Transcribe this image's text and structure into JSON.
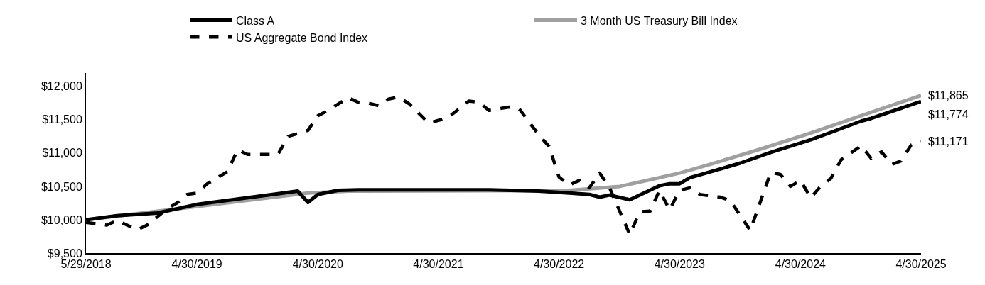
{
  "chart_data": {
    "type": "line",
    "xlim": [
      "2018-05-29",
      "2025-04-30"
    ],
    "xticks": [
      {
        "value": "2018-05-29",
        "label": "5/29/2018"
      },
      {
        "value": "2019-04-30",
        "label": "4/30/2019"
      },
      {
        "value": "2020-04-30",
        "label": "4/30/2020"
      },
      {
        "value": "2021-04-30",
        "label": "4/30/2021"
      },
      {
        "value": "2022-04-30",
        "label": "4/30/2022"
      },
      {
        "value": "2023-04-30",
        "label": "4/30/2023"
      },
      {
        "value": "2024-04-30",
        "label": "4/30/2024"
      },
      {
        "value": "2025-04-30",
        "label": "4/30/2025"
      }
    ],
    "ylim": [
      9500,
      12200
    ],
    "yticks": [
      {
        "value": 9500,
        "label": "$9,500"
      },
      {
        "value": 10000,
        "label": "$10,000"
      },
      {
        "value": 10500,
        "label": "$10,500"
      },
      {
        "value": 11000,
        "label": "$11,000"
      },
      {
        "value": 11500,
        "label": "$11,500"
      },
      {
        "value": 12000,
        "label": "$12,000"
      }
    ],
    "legend": "top",
    "marker": "none",
    "series": [
      {
        "name": "Class A",
        "color": "#000000",
        "line_style": "solid",
        "x": [
          "2018-05-29",
          "2018-08-31",
          "2018-12-31",
          "2019-04-30",
          "2019-12-31",
          "2020-02-29",
          "2020-03-31",
          "2020-04-30",
          "2020-06-30",
          "2020-08-31",
          "2021-09-30",
          "2022-02-28",
          "2022-05-31",
          "2022-07-31",
          "2022-08-31",
          "2022-09-30",
          "2022-11-30",
          "2023-02-28",
          "2023-03-31",
          "2023-04-30",
          "2023-05-31",
          "2023-08-31",
          "2023-10-31",
          "2024-01-31",
          "2024-05-31",
          "2024-07-31",
          "2024-10-31",
          "2024-11-30",
          "2025-04-30"
        ],
        "values": [
          10000,
          10060,
          10100,
          10230,
          10390,
          10430,
          10260,
          10380,
          10440,
          10450,
          10450,
          10430,
          10400,
          10380,
          10340,
          10370,
          10300,
          10510,
          10540,
          10540,
          10630,
          10760,
          10850,
          11010,
          11200,
          11310,
          11480,
          11520,
          11774
        ]
      },
      {
        "name": "3 Month US Treasury Bill Index",
        "color": "#a0a0a0",
        "line_style": "solid",
        "x": [
          "2018-05-29",
          "2019-04-30",
          "2020-03-31",
          "2020-07-31",
          "2022-05-31",
          "2022-10-31",
          "2023-01-31",
          "2023-04-30",
          "2023-07-31",
          "2023-12-31",
          "2024-05-31",
          "2024-10-31",
          "2025-04-30"
        ],
        "values": [
          10000,
          10200,
          10400,
          10430,
          10440,
          10500,
          10600,
          10700,
          10830,
          11060,
          11300,
          11560,
          11865
        ]
      },
      {
        "name": "US Aggregate Bond Index",
        "color": "#000000",
        "line_style": "dashed",
        "x": [
          "2018-05-29",
          "2018-07-31",
          "2018-08-31",
          "2018-10-31",
          "2018-11-30",
          "2019-01-31",
          "2019-02-28",
          "2019-03-31",
          "2019-04-30",
          "2019-05-31",
          "2019-07-31",
          "2019-08-31",
          "2019-09-30",
          "2019-12-31",
          "2020-01-31",
          "2020-03-31",
          "2020-04-30",
          "2020-05-31",
          "2020-07-31",
          "2020-08-31",
          "2020-09-30",
          "2020-10-31",
          "2020-11-30",
          "2020-12-31",
          "2021-01-31",
          "2021-03-31",
          "2021-04-30",
          "2021-05-31",
          "2021-07-31",
          "2021-08-31",
          "2021-09-30",
          "2021-11-30",
          "2021-12-31",
          "2022-02-28",
          "2022-03-31",
          "2022-04-30",
          "2022-05-31",
          "2022-06-30",
          "2022-07-31",
          "2022-08-31",
          "2022-09-30",
          "2022-11-30",
          "2022-12-31",
          "2023-01-31",
          "2023-02-28",
          "2023-03-31",
          "2023-04-30",
          "2023-05-31",
          "2023-06-30",
          "2023-08-31",
          "2023-09-30",
          "2023-11-30",
          "2024-01-31",
          "2024-02-29",
          "2024-03-31",
          "2024-04-30",
          "2024-05-31",
          "2024-06-30",
          "2024-07-31",
          "2024-08-31",
          "2024-10-31",
          "2024-11-30",
          "2024-12-31",
          "2025-01-31",
          "2025-02-28",
          "2025-03-31",
          "2025-04-30"
        ],
        "values": [
          9960,
          9920,
          9990,
          9850,
          9920,
          10170,
          10250,
          10380,
          10400,
          10540,
          10720,
          11050,
          10980,
          10980,
          11250,
          11340,
          11560,
          11640,
          11830,
          11760,
          11750,
          11710,
          11810,
          11840,
          11740,
          11450,
          11490,
          11540,
          11780,
          11760,
          11640,
          11690,
          11660,
          11270,
          11100,
          10640,
          10520,
          10590,
          10480,
          10700,
          10480,
          9780,
          10120,
          10130,
          10440,
          10150,
          10440,
          10480,
          10380,
          10340,
          10290,
          9840,
          10710,
          10680,
          10500,
          10590,
          10330,
          10500,
          10620,
          10900,
          11110,
          10920,
          11020,
          10830,
          10880,
          11120,
          11171
        ]
      }
    ],
    "annotations": [
      {
        "text": "$11,865",
        "x": "2025-04-30",
        "y": 11865
      },
      {
        "text": "$11,774",
        "x": "2025-04-30",
        "y": 11774
      },
      {
        "text": "$11,171",
        "x": "2025-04-30",
        "y": 11171
      }
    ]
  }
}
